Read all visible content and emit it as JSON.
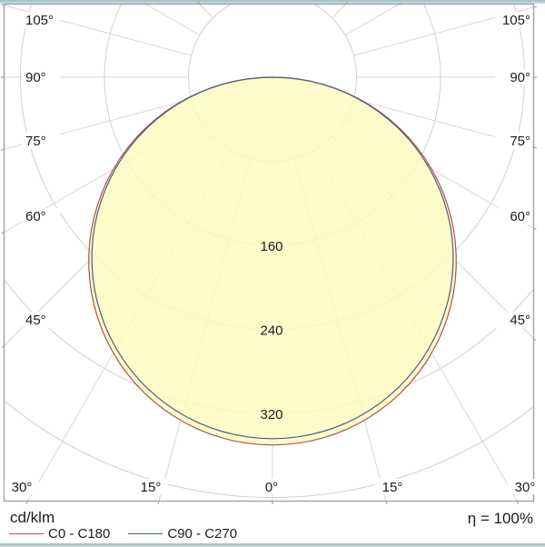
{
  "page": {
    "footer": {
      "unit_label": "cd/klm",
      "efficiency": "η = 100%"
    },
    "legend": [
      {
        "label": "C0 - C180",
        "color": "#ad544c"
      },
      {
        "label": "C90 - C270",
        "color": "#505c86"
      }
    ]
  },
  "chart_data": {
    "type": "polar_intensity_diagram",
    "title": "Luminaire polar luminous intensity distribution",
    "unit": "cd/klm",
    "efficiency": "η = 100%",
    "angle_range_deg": [
      -105,
      105
    ],
    "angle_step_deg": 15,
    "ring_values": [
      80,
      160,
      240,
      320,
      400
    ],
    "labeled_rings": [
      "160",
      "240",
      "320"
    ],
    "angle_labels_left": [
      "105°",
      "90°",
      "75°",
      "60°",
      "45°"
    ],
    "angle_labels_right": [
      "105°",
      "90°",
      "75°",
      "60°",
      "45°"
    ],
    "angle_labels_bottom": [
      "30°",
      "15°",
      "0°",
      "15°",
      "30°"
    ],
    "distribution_model": "cosine",
    "series": [
      {
        "name": "C0 - C180",
        "color": "#ad544c",
        "peak": 350,
        "angles_deg": [
          0,
          15,
          30,
          45,
          60,
          75,
          90
        ],
        "values": [
          350,
          338,
          303,
          247,
          175,
          91,
          0
        ],
        "filled": true
      },
      {
        "name": "C90 - C270",
        "color": "#505c86",
        "peak": 344,
        "angles_deg": [
          0,
          15,
          30,
          45,
          60,
          75,
          90
        ],
        "values": [
          344,
          332,
          298,
          243,
          172,
          89,
          0
        ],
        "filled": false
      }
    ],
    "fill_color": "rgba(252,250,189,0.82)",
    "grid": {
      "ring_color": "#d0d0d0",
      "ray_color": "#d7d7d7",
      "frame_color": "#a3a3a3"
    }
  }
}
